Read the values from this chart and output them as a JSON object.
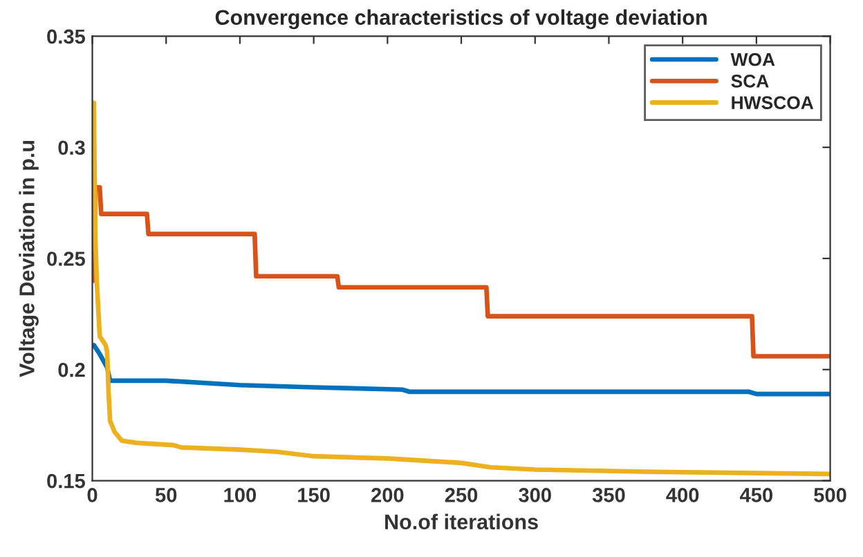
{
  "chart_data": {
    "type": "line",
    "title": "Convergence characteristics of voltage deviation",
    "xlabel": "No.of iterations",
    "ylabel": "Voltage Deviation in p.u",
    "xlim": [
      0,
      500
    ],
    "xticks": [
      0,
      50,
      100,
      150,
      200,
      250,
      300,
      350,
      400,
      450,
      500
    ],
    "ylim": [
      0.15,
      0.35
    ],
    "yticks": [
      0.15,
      0.2,
      0.25,
      0.3,
      0.35
    ],
    "grid": false,
    "legend": "top right",
    "line_style": "solid",
    "marker": "none",
    "series": [
      {
        "name": "WOA",
        "color": "#0072bd",
        "x": [
          1,
          5,
          10,
          12,
          50,
          100,
          150,
          210,
          215,
          445,
          450,
          500
        ],
        "values": [
          0.211,
          0.207,
          0.201,
          0.195,
          0.195,
          0.193,
          0.192,
          0.191,
          0.19,
          0.19,
          0.189,
          0.189
        ]
      },
      {
        "name": "SCA",
        "color": "#d95319",
        "x": [
          1,
          2,
          5,
          6,
          37,
          38,
          110,
          111,
          166,
          167,
          267,
          268,
          447,
          448,
          500
        ],
        "values": [
          0.24,
          0.282,
          0.282,
          0.27,
          0.27,
          0.261,
          0.261,
          0.242,
          0.242,
          0.237,
          0.237,
          0.224,
          0.224,
          0.206,
          0.206
        ]
      },
      {
        "name": "HWSCOA",
        "color": "#edb120",
        "x": [
          1,
          2,
          3,
          5,
          9,
          10,
          11,
          12,
          15,
          20,
          30,
          55,
          60,
          100,
          125,
          150,
          200,
          250,
          270,
          300,
          380,
          500
        ],
        "values": [
          0.32,
          0.26,
          0.24,
          0.215,
          0.211,
          0.208,
          0.19,
          0.177,
          0.172,
          0.168,
          0.167,
          0.166,
          0.165,
          0.164,
          0.163,
          0.161,
          0.16,
          0.158,
          0.156,
          0.155,
          0.154,
          0.153
        ]
      }
    ]
  }
}
